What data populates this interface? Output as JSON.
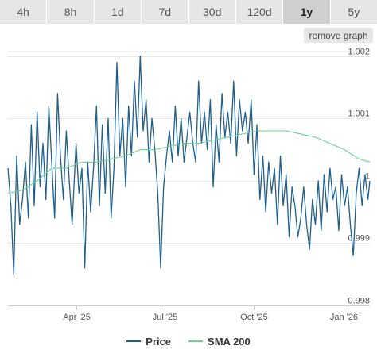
{
  "range_selector": {
    "options": [
      "4h",
      "8h",
      "1d",
      "7d",
      "30d",
      "120d",
      "1y",
      "5y"
    ],
    "active": "1y"
  },
  "remove_graph_label": "remove graph",
  "colors": {
    "price": "#1f5f8b",
    "sma": "#66d38f",
    "grid": "#e6e6e6",
    "axis_text": "#555555"
  },
  "chart_data": {
    "type": "line",
    "title": "",
    "xlabel": "",
    "ylabel": "",
    "x_range": [
      "2025-01-21",
      "2026-01-28"
    ],
    "ylim": [
      0.998,
      1.0022
    ],
    "y_ticks": [
      {
        "value": 0.998,
        "label": "0.998"
      },
      {
        "value": 0.999,
        "label": "0.999"
      },
      {
        "value": 1.0,
        "label": "1"
      },
      {
        "value": 1.001,
        "label": "1.001"
      },
      {
        "value": 1.002,
        "label": "1.002"
      }
    ],
    "x_ticks": [
      {
        "date": "2025-04-01",
        "label": "Apr '25"
      },
      {
        "date": "2025-07-01",
        "label": "Jul '25"
      },
      {
        "date": "2025-10-01",
        "label": "Oct '25"
      },
      {
        "date": "2026-01-01",
        "label": "Jan '26"
      }
    ],
    "grid": true,
    "legend_position": "bottom-center",
    "series": [
      {
        "name": "Price",
        "points": [
          [
            "2025-01-21",
            1.0002
          ],
          [
            "2025-01-24",
            0.9996
          ],
          [
            "2025-01-27",
            0.9985
          ],
          [
            "2025-01-30",
            1.0004
          ],
          [
            "2025-02-02",
            0.9993
          ],
          [
            "2025-02-05",
            0.9997
          ],
          [
            "2025-02-08",
            1.0003
          ],
          [
            "2025-02-11",
            0.9994
          ],
          [
            "2025-02-14",
            1.0009
          ],
          [
            "2025-02-17",
            0.9996
          ],
          [
            "2025-02-20",
            1.0011
          ],
          [
            "2025-02-23",
            0.9999
          ],
          [
            "2025-02-26",
            1.0006
          ],
          [
            "2025-03-01",
            0.9997
          ],
          [
            "2025-03-04",
            1.0012
          ],
          [
            "2025-03-07",
            1.0003
          ],
          [
            "2025-03-10",
            0.9994
          ],
          [
            "2025-03-13",
            1.0014
          ],
          [
            "2025-03-16",
            1.0004
          ],
          [
            "2025-03-19",
            0.9997
          ],
          [
            "2025-03-22",
            1.0008
          ],
          [
            "2025-03-25",
            1.0
          ],
          [
            "2025-03-28",
            0.9993
          ],
          [
            "2025-04-01",
            1.0006
          ],
          [
            "2025-04-04",
            0.9998
          ],
          [
            "2025-04-07",
            1.0002
          ],
          [
            "2025-04-10",
            0.9986
          ],
          [
            "2025-04-13",
            1.0003
          ],
          [
            "2025-04-16",
            0.9995
          ],
          [
            "2025-04-19",
            1.0002
          ],
          [
            "2025-04-22",
            1.0012
          ],
          [
            "2025-04-25",
            0.9996
          ],
          [
            "2025-04-28",
            1.0009
          ],
          [
            "2025-05-01",
            0.9998
          ],
          [
            "2025-05-04",
            1.001
          ],
          [
            "2025-05-07",
            0.9994
          ],
          [
            "2025-05-10",
            1.0002
          ],
          [
            "2025-05-13",
            1.0019
          ],
          [
            "2025-05-16",
            1.0004
          ],
          [
            "2025-05-19",
            1.001
          ],
          [
            "2025-05-22",
            0.9999
          ],
          [
            "2025-05-25",
            1.0012
          ],
          [
            "2025-05-28",
            1.0004
          ],
          [
            "2025-05-31",
            1.0016
          ],
          [
            "2025-06-03",
            1.0007
          ],
          [
            "2025-06-06",
            1.002
          ],
          [
            "2025-06-09",
            1.0008
          ],
          [
            "2025-06-12",
            1.0013
          ],
          [
            "2025-06-15",
            1.0003
          ],
          [
            "2025-06-18",
            1.001
          ],
          [
            "2025-06-21",
            1.0005
          ],
          [
            "2025-06-24",
            0.9998
          ],
          [
            "2025-06-27",
            0.9986
          ],
          [
            "2025-06-30",
            0.9999
          ],
          [
            "2025-07-03",
            1.0004
          ],
          [
            "2025-07-06",
            1.0008
          ],
          [
            "2025-07-09",
            1.0003
          ],
          [
            "2025-07-12",
            1.0012
          ],
          [
            "2025-07-15",
            1.0004
          ],
          [
            "2025-07-18",
            1.001
          ],
          [
            "2025-07-21",
            1.0003
          ],
          [
            "2025-07-24",
            1.0007
          ],
          [
            "2025-07-27",
            1.0011
          ],
          [
            "2025-07-30",
            1.0006
          ],
          [
            "2025-08-02",
            1.0003
          ],
          [
            "2025-08-05",
            1.0016
          ],
          [
            "2025-08-08",
            1.0006
          ],
          [
            "2025-08-11",
            1.0011
          ],
          [
            "2025-08-14",
            1.0005
          ],
          [
            "2025-08-17",
            1.0013
          ],
          [
            "2025-08-20",
            0.9999
          ],
          [
            "2025-08-23",
            1.0009
          ],
          [
            "2025-08-26",
            1.0003
          ],
          [
            "2025-08-29",
            1.0014
          ],
          [
            "2025-09-01",
            1.0007
          ],
          [
            "2025-09-04",
            1.0011
          ],
          [
            "2025-09-07",
            1.0006
          ],
          [
            "2025-09-10",
            1.0016
          ],
          [
            "2025-09-13",
            1.0004
          ],
          [
            "2025-09-16",
            1.0013
          ],
          [
            "2025-09-19",
            1.0008
          ],
          [
            "2025-09-22",
            1.0011
          ],
          [
            "2025-09-25",
            1.0006
          ],
          [
            "2025-09-28",
            1.0013
          ],
          [
            "2025-10-01",
            1.0001
          ],
          [
            "2025-10-04",
            1.0009
          ],
          [
            "2025-10-07",
            0.9997
          ],
          [
            "2025-10-10",
            1.0004
          ],
          [
            "2025-10-13",
            0.9995
          ],
          [
            "2025-10-16",
            1.0003
          ],
          [
            "2025-10-19",
            0.9998
          ],
          [
            "2025-10-22",
            1.0002
          ],
          [
            "2025-10-25",
            0.9993
          ],
          [
            "2025-10-28",
            1.0004
          ],
          [
            "2025-10-31",
            0.9996
          ],
          [
            "2025-11-03",
            1.0001
          ],
          [
            "2025-11-06",
            0.9991
          ],
          [
            "2025-11-09",
            0.9999
          ],
          [
            "2025-11-12",
            0.9996
          ],
          [
            "2025-11-15",
            0.9991
          ],
          [
            "2025-11-18",
            0.9994
          ],
          [
            "2025-11-21",
            0.9999
          ],
          [
            "2025-11-24",
            0.9993
          ],
          [
            "2025-11-27",
            0.9989
          ],
          [
            "2025-11-30",
            0.9997
          ],
          [
            "2025-12-03",
            0.9993
          ],
          [
            "2025-12-06",
            1.0
          ],
          [
            "2025-12-09",
            0.9992
          ],
          [
            "2025-12-12",
            1.0001
          ],
          [
            "2025-12-15",
            0.9995
          ],
          [
            "2025-12-18",
            1.0002
          ],
          [
            "2025-12-21",
            0.9997
          ],
          [
            "2025-12-24",
            0.9999
          ],
          [
            "2025-12-27",
            0.9992
          ],
          [
            "2025-12-30",
            1.0001
          ],
          [
            "2026-01-02",
            0.9996
          ],
          [
            "2026-01-05",
            0.9999
          ],
          [
            "2026-01-08",
            0.9993
          ],
          [
            "2026-01-11",
            0.9988
          ],
          [
            "2026-01-14",
            0.9998
          ],
          [
            "2026-01-17",
            1.0002
          ],
          [
            "2026-01-20",
            0.9996
          ],
          [
            "2026-01-23",
            1.0001
          ],
          [
            "2026-01-26",
            0.9997
          ],
          [
            "2026-01-28",
            1.0
          ]
        ]
      },
      {
        "name": "SMA 200",
        "points": [
          [
            "2025-01-21",
            0.9998
          ],
          [
            "2025-02-05",
            0.99985
          ],
          [
            "2025-02-20",
            1.0
          ],
          [
            "2025-03-07",
            1.0002
          ],
          [
            "2025-03-22",
            1.0002
          ],
          [
            "2025-04-07",
            1.0003
          ],
          [
            "2025-04-22",
            1.0003
          ],
          [
            "2025-05-07",
            1.00035
          ],
          [
            "2025-05-22",
            1.0004
          ],
          [
            "2025-06-06",
            1.0005
          ],
          [
            "2025-06-21",
            1.0005
          ],
          [
            "2025-07-06",
            1.00055
          ],
          [
            "2025-07-21",
            1.0006
          ],
          [
            "2025-08-05",
            1.0006
          ],
          [
            "2025-08-20",
            1.00065
          ],
          [
            "2025-09-04",
            1.0007
          ],
          [
            "2025-09-19",
            1.00075
          ],
          [
            "2025-10-04",
            1.0008
          ],
          [
            "2025-10-19",
            1.0008
          ],
          [
            "2025-11-03",
            1.0008
          ],
          [
            "2025-11-18",
            1.00075
          ],
          [
            "2025-12-03",
            1.0007
          ],
          [
            "2025-12-18",
            1.0006
          ],
          [
            "2026-01-02",
            1.0005
          ],
          [
            "2026-01-17",
            1.00035
          ],
          [
            "2026-01-28",
            1.0003
          ]
        ]
      }
    ]
  }
}
